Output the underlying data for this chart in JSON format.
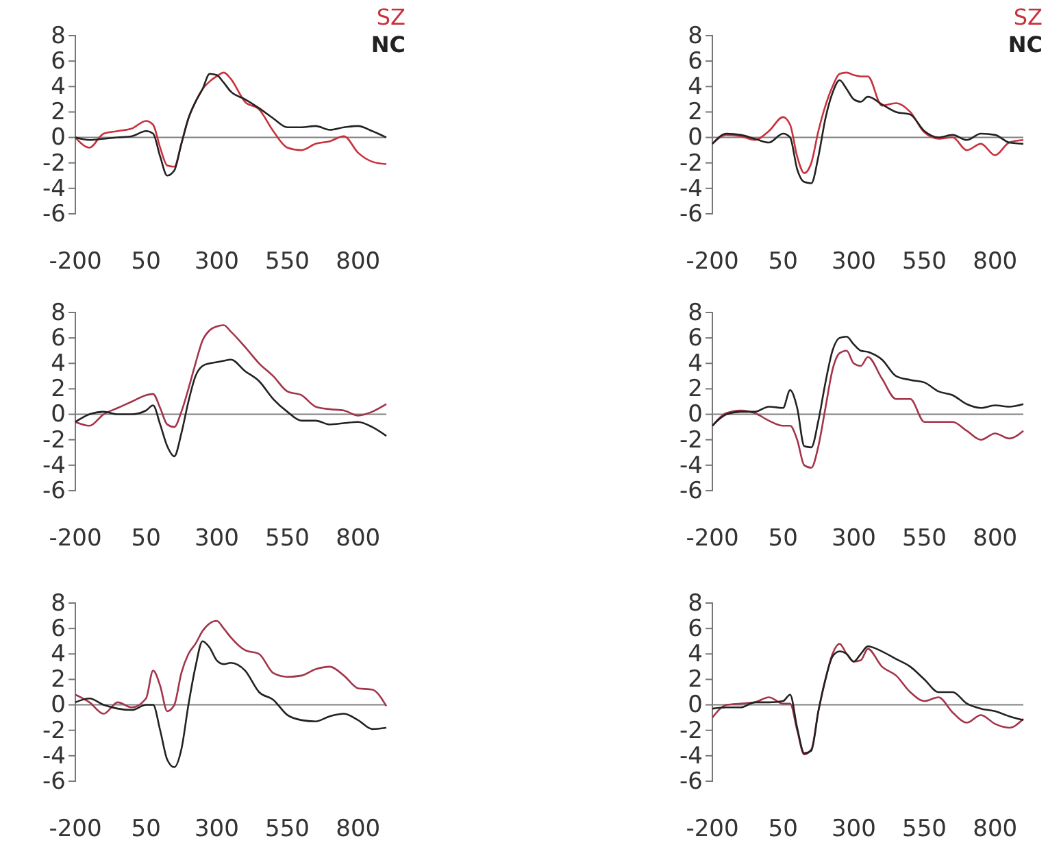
{
  "chart_data": [
    {
      "type": "line",
      "x": [
        -200,
        -150,
        -100,
        -50,
        0,
        50,
        75,
        100,
        125,
        150,
        175,
        200,
        225,
        250,
        275,
        300,
        325,
        350,
        400,
        450,
        500,
        550,
        600,
        650,
        700,
        750,
        800,
        850,
        900
      ],
      "xlim": [
        -200,
        900
      ],
      "ylim": [
        -6,
        8
      ],
      "xticks": [
        -200,
        50,
        300,
        550,
        800
      ],
      "yticks": [
        -6,
        -4,
        -2,
        0,
        2,
        4,
        6,
        8
      ],
      "legend": "top right",
      "ref_lines": [
        {
          "axis": "y",
          "value": 0,
          "color": "#808080"
        }
      ],
      "series": [
        {
          "name": "SZ",
          "color": "#c8303c",
          "values": [
            0,
            -0.8,
            0.3,
            0.5,
            0.7,
            1.3,
            1.0,
            -0.8,
            -2.2,
            -2.3,
            -0.5,
            1.5,
            2.8,
            3.8,
            4.4,
            4.8,
            5.1,
            4.6,
            2.8,
            2.2,
            0.5,
            -0.8,
            -1.0,
            -0.5,
            -0.3,
            0.1,
            -1.2,
            -1.9,
            -2.1
          ]
        },
        {
          "name": "NC",
          "color": "#222222",
          "values": [
            0,
            -0.2,
            -0.1,
            0.0,
            0.1,
            0.5,
            0.3,
            -1.5,
            -3.0,
            -2.6,
            -0.5,
            1.5,
            2.8,
            3.8,
            5.0,
            4.9,
            4.3,
            3.6,
            3.0,
            2.3,
            1.5,
            0.8,
            0.8,
            0.9,
            0.6,
            0.8,
            0.9,
            0.5,
            0.0
          ]
        }
      ]
    },
    {
      "type": "line",
      "x": [
        -200,
        -150,
        -100,
        -50,
        0,
        50,
        75,
        100,
        125,
        150,
        175,
        200,
        225,
        250,
        275,
        300,
        325,
        350,
        400,
        450,
        500,
        550,
        600,
        650,
        700,
        750,
        800,
        850,
        900
      ],
      "xlim": [
        -200,
        900
      ],
      "ylim": [
        -6,
        8
      ],
      "xticks": [
        -200,
        50,
        300,
        550,
        800
      ],
      "yticks": [
        -6,
        -4,
        -2,
        0,
        2,
        4,
        6,
        8
      ],
      "legend": "top right",
      "ref_lines": [
        {
          "axis": "y",
          "value": 0,
          "color": "#808080"
        }
      ],
      "series": [
        {
          "name": "SZ",
          "color": "#c8303c",
          "values": [
            -0.5,
            0.2,
            0.1,
            -0.2,
            0.5,
            1.6,
            1.0,
            -1.5,
            -2.8,
            -2.0,
            0.5,
            2.5,
            4.0,
            5.0,
            5.1,
            4.9,
            4.8,
            4.8,
            2.5,
            2.7,
            2.0,
            0.4,
            -0.1,
            0.0,
            -1.0,
            -0.5,
            -1.4,
            -0.4,
            -0.2
          ]
        },
        {
          "name": "NC",
          "color": "#222222",
          "values": [
            -0.5,
            0.3,
            0.2,
            -0.1,
            -0.4,
            0.3,
            0.0,
            -2.5,
            -3.5,
            -3.6,
            -1.5,
            1.5,
            3.5,
            4.5,
            3.8,
            3.0,
            2.8,
            3.2,
            2.6,
            2.0,
            1.8,
            0.5,
            0.0,
            0.2,
            -0.2,
            0.3,
            0.2,
            -0.4,
            -0.5
          ]
        }
      ]
    },
    {
      "type": "line",
      "x": [
        -200,
        -150,
        -100,
        -50,
        0,
        50,
        75,
        100,
        125,
        150,
        175,
        200,
        225,
        250,
        275,
        300,
        325,
        350,
        400,
        450,
        500,
        550,
        600,
        650,
        700,
        750,
        800,
        850,
        900
      ],
      "xlim": [
        -200,
        900
      ],
      "ylim": [
        -6,
        8
      ],
      "xticks": [
        -200,
        50,
        300,
        550,
        800
      ],
      "yticks": [
        -6,
        -4,
        -2,
        0,
        2,
        4,
        6,
        8
      ],
      "ref_lines": [
        {
          "axis": "y",
          "value": 0,
          "color": "#808080"
        }
      ],
      "series": [
        {
          "color": "#a3344a",
          "values": [
            -0.6,
            -0.9,
            0.0,
            0.5,
            1.0,
            1.5,
            1.6,
            0.5,
            -0.8,
            -1.0,
            0.2,
            2.0,
            4.0,
            5.8,
            6.6,
            6.9,
            7.0,
            6.5,
            5.3,
            4.0,
            3.0,
            1.8,
            1.5,
            0.6,
            0.4,
            0.3,
            -0.1,
            0.2,
            0.8
          ]
        },
        {
          "color": "#222222",
          "values": [
            -0.6,
            0.0,
            0.2,
            0.0,
            0.0,
            0.3,
            0.7,
            -0.8,
            -2.5,
            -3.3,
            -1.5,
            1.0,
            3.0,
            3.8,
            4.0,
            4.1,
            4.2,
            4.3,
            3.4,
            2.6,
            1.2,
            0.2,
            -0.5,
            -0.5,
            -0.8,
            -0.7,
            -0.6,
            -1.0,
            -1.7
          ]
        }
      ]
    },
    {
      "type": "line",
      "x": [
        -200,
        -150,
        -100,
        -50,
        0,
        50,
        75,
        100,
        125,
        150,
        175,
        200,
        225,
        250,
        275,
        300,
        325,
        350,
        400,
        450,
        500,
        550,
        600,
        650,
        700,
        750,
        800,
        850,
        900
      ],
      "xlim": [
        -200,
        900
      ],
      "ylim": [
        -6,
        8
      ],
      "xticks": [
        -200,
        50,
        300,
        550,
        800
      ],
      "yticks": [
        -6,
        -4,
        -2,
        0,
        2,
        4,
        6,
        8
      ],
      "ref_lines": [
        {
          "axis": "y",
          "value": 0,
          "color": "#808080"
        }
      ],
      "series": [
        {
          "color": "#a3344a",
          "values": [
            -0.9,
            0.1,
            0.3,
            0.1,
            -0.5,
            -0.9,
            -0.9,
            -2.0,
            -4.0,
            -4.2,
            -2.5,
            0.5,
            3.5,
            4.8,
            5.0,
            4.0,
            3.8,
            4.5,
            2.8,
            1.2,
            1.2,
            -0.6,
            -0.6,
            -0.6,
            -1.3,
            -2.0,
            -1.5,
            -1.9,
            -1.3
          ]
        },
        {
          "color": "#222222",
          "values": [
            -0.9,
            0.0,
            0.2,
            0.2,
            0.6,
            0.5,
            1.9,
            0.5,
            -2.5,
            -2.6,
            -0.5,
            2.5,
            5.0,
            6.0,
            6.1,
            5.5,
            5.0,
            4.9,
            4.3,
            3.0,
            2.7,
            2.5,
            1.8,
            1.5,
            0.8,
            0.5,
            0.7,
            0.6,
            0.8
          ]
        }
      ]
    },
    {
      "type": "line",
      "x": [
        -200,
        -150,
        -100,
        -50,
        0,
        50,
        75,
        100,
        125,
        150,
        175,
        200,
        225,
        250,
        275,
        300,
        325,
        350,
        400,
        450,
        500,
        550,
        600,
        650,
        700,
        750,
        800,
        850,
        900
      ],
      "xlim": [
        -200,
        900
      ],
      "ylim": [
        -6,
        8
      ],
      "xticks": [
        -200,
        50,
        300,
        550,
        800
      ],
      "yticks": [
        -6,
        -4,
        -2,
        0,
        2,
        4,
        6,
        8
      ],
      "ref_lines": [
        {
          "axis": "y",
          "value": 0,
          "color": "#808080"
        }
      ],
      "series": [
        {
          "color": "#a3344a",
          "values": [
            0.8,
            0.2,
            -0.7,
            0.2,
            -0.2,
            0.5,
            2.7,
            1.5,
            -0.5,
            0.0,
            2.5,
            4.0,
            4.8,
            5.8,
            6.4,
            6.6,
            6.0,
            5.3,
            4.3,
            4.0,
            2.5,
            2.2,
            2.3,
            2.8,
            3.0,
            2.3,
            1.3,
            1.2,
            -0.1
          ]
        },
        {
          "color": "#222222",
          "values": [
            0.2,
            0.5,
            0.0,
            -0.3,
            -0.4,
            0.0,
            0.0,
            -2.0,
            -4.3,
            -4.9,
            -3.5,
            0.0,
            3.0,
            5.0,
            4.5,
            3.5,
            3.2,
            3.3,
            2.7,
            1.0,
            0.4,
            -0.8,
            -1.2,
            -1.3,
            -0.9,
            -0.7,
            -1.2,
            -1.9,
            -1.8
          ]
        }
      ]
    },
    {
      "type": "line",
      "x": [
        -200,
        -150,
        -100,
        -50,
        0,
        50,
        75,
        100,
        125,
        150,
        175,
        200,
        225,
        250,
        275,
        300,
        325,
        350,
        400,
        450,
        500,
        550,
        600,
        650,
        700,
        750,
        800,
        850,
        900
      ],
      "xlim": [
        -200,
        900
      ],
      "ylim": [
        -6,
        8
      ],
      "xticks": [
        -200,
        50,
        300,
        550,
        800
      ],
      "yticks": [
        -6,
        -4,
        -2,
        0,
        2,
        4,
        6,
        8
      ],
      "ref_lines": [
        {
          "axis": "y",
          "value": 0,
          "color": "#808080"
        }
      ],
      "series": [
        {
          "color": "#a3344a",
          "values": [
            -1.0,
            0.0,
            0.1,
            0.2,
            0.6,
            0.1,
            0.1,
            -2.0,
            -3.9,
            -3.5,
            -0.5,
            2.0,
            4.0,
            4.8,
            4.0,
            3.4,
            3.5,
            4.4,
            3.0,
            2.3,
            1.0,
            0.3,
            0.6,
            -0.6,
            -1.4,
            -0.8,
            -1.5,
            -1.8,
            -1.1
          ]
        },
        {
          "color": "#222222",
          "values": [
            -0.3,
            -0.2,
            -0.2,
            0.2,
            0.2,
            0.3,
            0.8,
            -1.8,
            -3.8,
            -3.6,
            -0.5,
            2.0,
            3.8,
            4.2,
            4.0,
            3.4,
            4.0,
            4.6,
            4.2,
            3.6,
            3.0,
            2.0,
            1.0,
            1.0,
            0.1,
            -0.3,
            -0.5,
            -0.9,
            -1.2
          ]
        }
      ]
    }
  ]
}
